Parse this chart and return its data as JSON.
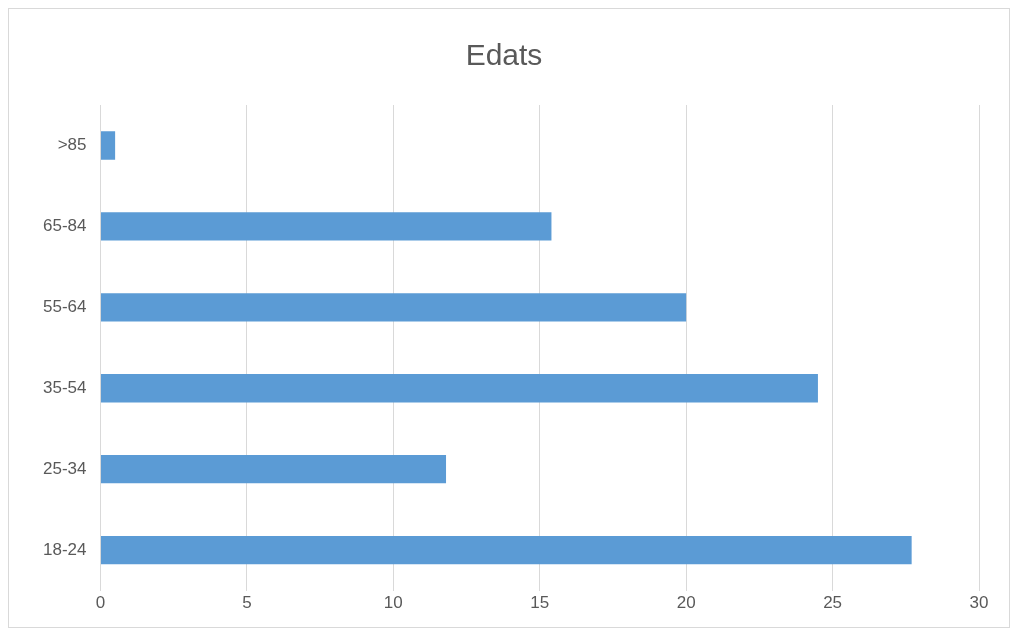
{
  "chart_data": {
    "type": "bar",
    "orientation": "horizontal",
    "title": "Edats",
    "categories": [
      ">85",
      "65-84",
      "55-64",
      "35-54",
      "25-34",
      "18-24"
    ],
    "values": [
      0.5,
      15.4,
      20.0,
      24.5,
      11.8,
      27.7
    ],
    "color": "#5b9bd5",
    "xlim": [
      0,
      30
    ],
    "xticks": [
      0,
      5,
      10,
      15,
      20,
      25,
      30
    ],
    "grid": "x",
    "legend": false
  }
}
